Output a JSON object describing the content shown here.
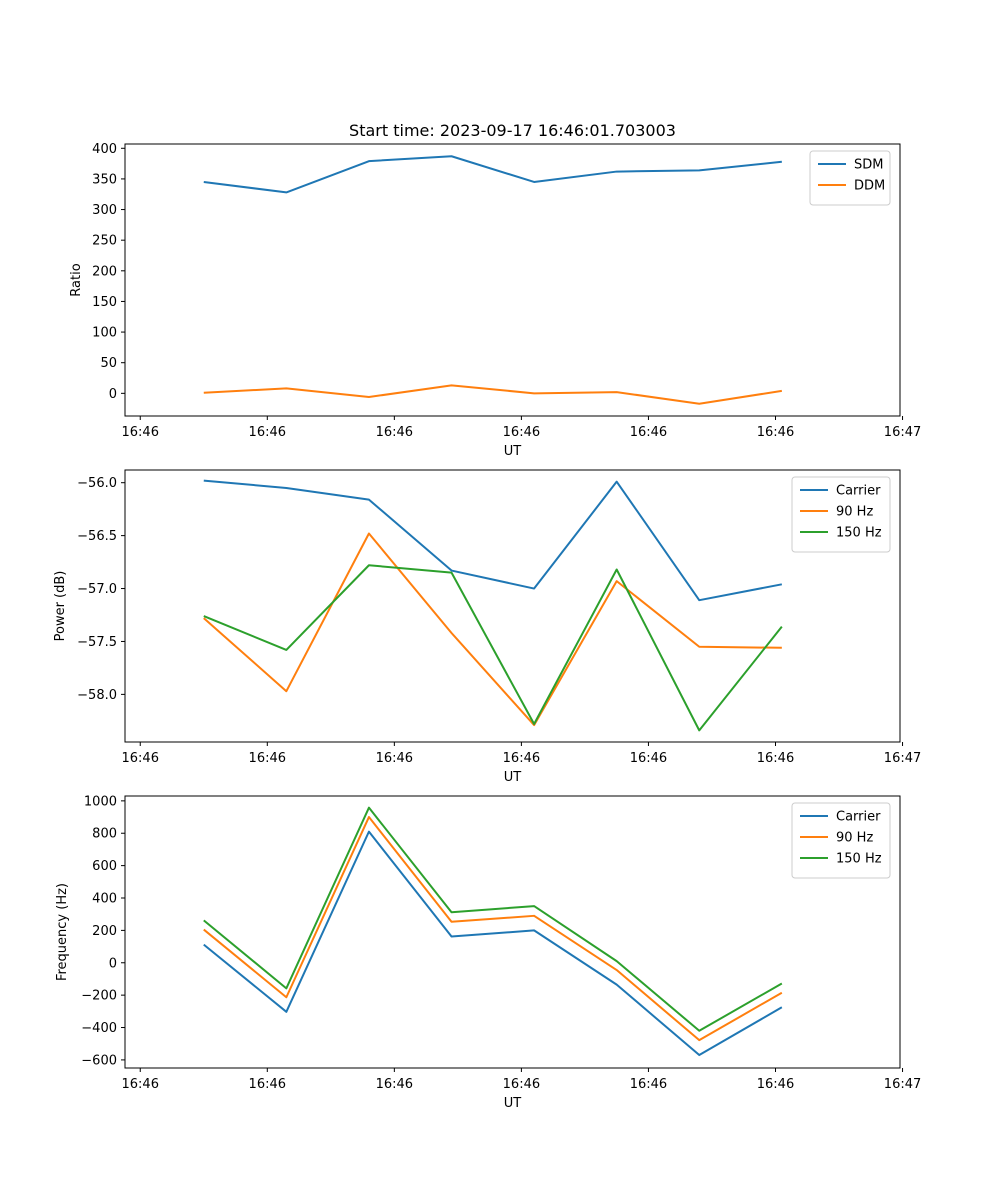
{
  "figure_title": "Start time: 2023-09-17 16:46:01.703003",
  "x_ticks": [
    "16:46",
    "16:46",
    "16:46",
    "16:46",
    "16:46",
    "16:46",
    "16:46"
  ],
  "x_ticks_last": "16:47",
  "colors": {
    "blue": "#1f77b4",
    "orange": "#ff7f0e",
    "green": "#2ca02c"
  },
  "chart_data": [
    {
      "type": "line",
      "title": "Start time: 2023-09-17 16:46:01.703003",
      "xlabel": "UT",
      "ylabel": "Ratio",
      "x": [
        0.5,
        1.15,
        1.8,
        2.45,
        3.1,
        3.75,
        4.4,
        5.05
      ],
      "xlim": [
        -0.12,
        5.98
      ],
      "ylim": [
        -37,
        407
      ],
      "yticks": [
        0,
        50,
        100,
        150,
        200,
        250,
        300,
        350,
        400
      ],
      "ytick_labels": [
        "0",
        "50",
        "100",
        "150",
        "200",
        "250",
        "300",
        "350",
        "400"
      ],
      "legend_position": "top-right",
      "series": [
        {
          "name": "SDM",
          "color": "#1f77b4",
          "values": [
            345,
            328,
            379,
            387,
            345,
            362,
            364,
            378
          ]
        },
        {
          "name": "DDM",
          "color": "#ff7f0e",
          "values": [
            1,
            8,
            -6,
            13,
            0,
            2,
            -17,
            4
          ]
        }
      ]
    },
    {
      "type": "line",
      "title": "",
      "xlabel": "UT",
      "ylabel": "Power (dB)",
      "x": [
        0.5,
        1.15,
        1.8,
        2.45,
        3.1,
        3.75,
        4.4,
        5.05
      ],
      "xlim": [
        -0.12,
        5.98
      ],
      "ylim": [
        -58.45,
        -55.88
      ],
      "yticks": [
        -56.0,
        -56.5,
        -57.0,
        -57.5,
        -58.0
      ],
      "ytick_labels": [
        "−56.0",
        "−56.5",
        "−57.0",
        "−57.5",
        "−58.0"
      ],
      "legend_position": "top-right",
      "series": [
        {
          "name": "Carrier",
          "color": "#1f77b4",
          "values": [
            -55.98,
            -56.05,
            -56.16,
            -56.83,
            -57.0,
            -55.99,
            -57.11,
            -56.96
          ]
        },
        {
          "name": "90 Hz",
          "color": "#ff7f0e",
          "values": [
            -57.28,
            -57.97,
            -56.48,
            -57.42,
            -58.29,
            -56.93,
            -57.55,
            -57.56
          ]
        },
        {
          "name": "150 Hz",
          "color": "#2ca02c",
          "values": [
            -57.26,
            -57.58,
            -56.78,
            -56.85,
            -58.28,
            -56.82,
            -58.34,
            -57.36
          ]
        }
      ]
    },
    {
      "type": "line",
      "title": "",
      "xlabel": "UT",
      "ylabel": "Frequency (Hz)",
      "x": [
        0.5,
        1.15,
        1.8,
        2.45,
        3.1,
        3.75,
        4.4,
        5.05
      ],
      "xlim": [
        -0.12,
        5.98
      ],
      "ylim": [
        -650,
        1030
      ],
      "yticks": [
        -600,
        -400,
        -200,
        0,
        200,
        400,
        600,
        800,
        1000
      ],
      "ytick_labels": [
        "−600",
        "−400",
        "−200",
        "0",
        "200",
        "400",
        "600",
        "800",
        "1000"
      ],
      "legend_position": "top-right",
      "series": [
        {
          "name": "Carrier",
          "color": "#1f77b4",
          "values": [
            112,
            -303,
            810,
            162,
            200,
            -135,
            -570,
            -275
          ]
        },
        {
          "name": "90 Hz",
          "color": "#ff7f0e",
          "values": [
            205,
            -213,
            900,
            253,
            290,
            -45,
            -478,
            -185
          ]
        },
        {
          "name": "150 Hz",
          "color": "#2ca02c",
          "values": [
            262,
            -158,
            958,
            312,
            350,
            10,
            -420,
            -128
          ]
        }
      ]
    }
  ]
}
